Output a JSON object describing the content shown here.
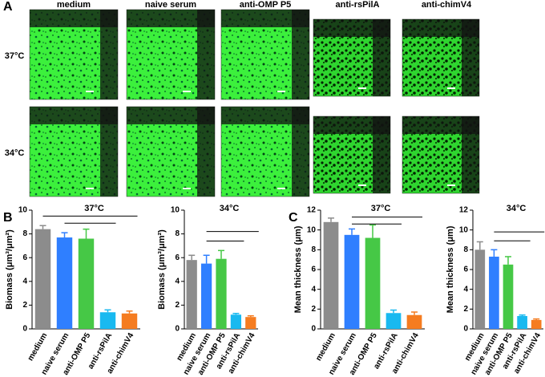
{
  "panel_labels": [
    "A",
    "B",
    "C"
  ],
  "panel_a": {
    "columns": [
      "medium",
      "naive serum",
      "anti-OMP P5",
      "anti-rsPilA",
      "anti-chimV4"
    ],
    "rows": [
      "37°C",
      "34°C"
    ]
  },
  "chart_data": [
    {
      "type": "bar",
      "title": "37°C",
      "ylabel": "Biomass (μm³/μm²)",
      "categories": [
        "medium",
        "naive serum",
        "anti-OMP P5",
        "anti-rsPilA",
        "anti-chimV4"
      ],
      "values": [
        8.4,
        7.7,
        7.6,
        1.4,
        1.3
      ],
      "errors": [
        0.3,
        0.4,
        0.8,
        0.2,
        0.2
      ],
      "colors": [
        "#8c8c8c",
        "#2f7fff",
        "#46c846",
        "#19b9f0",
        "#f57c20"
      ],
      "ylim": [
        0,
        10
      ],
      "yticks": [
        0,
        2,
        4,
        6,
        8,
        10
      ]
    },
    {
      "type": "bar",
      "title": "34°C",
      "ylabel": "Biomass (μm³/μm²)",
      "categories": [
        "medium",
        "naive serum",
        "anti-OMP P5",
        "anti-rsPilA",
        "anti-chimV4"
      ],
      "values": [
        5.8,
        5.5,
        5.9,
        1.2,
        1.0
      ],
      "errors": [
        0.4,
        0.7,
        0.7,
        0.1,
        0.1
      ],
      "colors": [
        "#8c8c8c",
        "#2f7fff",
        "#46c846",
        "#19b9f0",
        "#f57c20"
      ],
      "ylim": [
        0,
        10
      ],
      "yticks": [
        0,
        2,
        4,
        6,
        8,
        10
      ]
    },
    {
      "type": "bar",
      "title": "37°C",
      "ylabel": "Mean thickness (μm)",
      "categories": [
        "medium",
        "naive serum",
        "anti-OMP P5",
        "anti-rsPilA",
        "anti-chimV4"
      ],
      "values": [
        10.8,
        9.5,
        9.2,
        1.6,
        1.4
      ],
      "errors": [
        0.4,
        0.6,
        1.3,
        0.3,
        0.3
      ],
      "colors": [
        "#8c8c8c",
        "#2f7fff",
        "#46c846",
        "#19b9f0",
        "#f57c20"
      ],
      "ylim": [
        0,
        12
      ],
      "yticks": [
        0,
        2,
        4,
        6,
        8,
        10,
        12
      ]
    },
    {
      "type": "bar",
      "title": "34°C",
      "ylabel": "Mean thickness (μm)",
      "categories": [
        "medium",
        "naive serum",
        "anti-OMP P5",
        "anti-rsPilA",
        "anti-chimV4"
      ],
      "values": [
        8.0,
        7.3,
        6.5,
        1.3,
        0.9
      ],
      "errors": [
        0.8,
        0.7,
        0.8,
        0.1,
        0.1
      ],
      "colors": [
        "#8c8c8c",
        "#2f7fff",
        "#46c846",
        "#19b9f0",
        "#f57c20"
      ],
      "ylim": [
        0,
        12
      ],
      "yticks": [
        0,
        2,
        4,
        6,
        8,
        10,
        12
      ]
    }
  ]
}
